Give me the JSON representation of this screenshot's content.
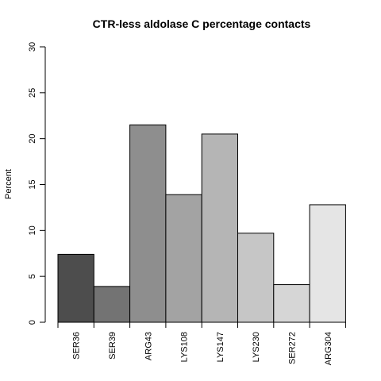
{
  "chart_data": {
    "type": "bar",
    "title": "CTR-less aldolase C percentage contacts",
    "xlabel": "",
    "ylabel": "Percent",
    "categories": [
      "SER36",
      "SER39",
      "ARG43",
      "LYS108",
      "LYS147",
      "LYS230",
      "SER272",
      "ARG304"
    ],
    "values": [
      7.4,
      3.9,
      21.5,
      13.9,
      20.5,
      9.7,
      4.1,
      12.8
    ],
    "colors": [
      "#4d4d4d",
      "#737373",
      "#8e8e8e",
      "#a3a3a3",
      "#b5b5b5",
      "#c6c6c6",
      "#d6d6d6",
      "#e5e5e5"
    ],
    "ylim": [
      0,
      30
    ],
    "yticks": [
      "0",
      "5",
      "10",
      "15",
      "20",
      "25",
      "30"
    ],
    "grid": false,
    "legend": "none"
  }
}
